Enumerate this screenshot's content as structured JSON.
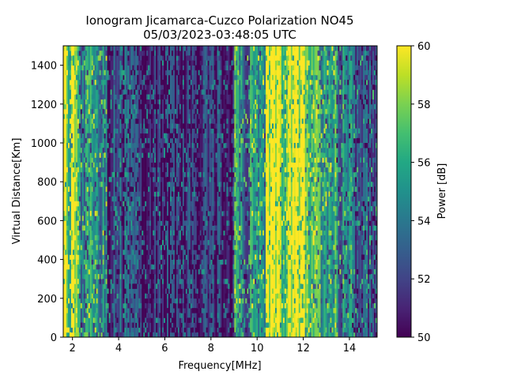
{
  "chart_data": {
    "type": "heatmap",
    "title": "Ionogram Jicamarca-Cuzco Polarization NO45",
    "subtitle": "05/03/2023-03:48:05 UTC",
    "xlabel": "Frequency[MHz]",
    "ylabel": "Virtual Distance[Km]",
    "xlim": [
      1.6,
      15.2
    ],
    "ylim": [
      0,
      1500
    ],
    "xticks": [
      2,
      4,
      6,
      8,
      10,
      12,
      14
    ],
    "yticks": [
      0,
      200,
      400,
      600,
      800,
      1000,
      1200,
      1400
    ],
    "colorbar": {
      "label": "Power [dB]",
      "range": [
        50,
        60
      ],
      "ticks": [
        50,
        52,
        54,
        56,
        58,
        60
      ],
      "colormap": "viridis"
    },
    "frequency_power_profile": [
      {
        "from": 1.6,
        "to": 1.8,
        "level": 0.95
      },
      {
        "from": 1.8,
        "to": 2.0,
        "level": 0.8
      },
      {
        "from": 2.0,
        "to": 2.3,
        "level": 0.88
      },
      {
        "from": 2.3,
        "to": 2.6,
        "level": 0.45
      },
      {
        "from": 2.6,
        "to": 3.0,
        "level": 0.55
      },
      {
        "from": 3.0,
        "to": 3.5,
        "level": 0.5
      },
      {
        "from": 3.5,
        "to": 4.5,
        "level": 0.22
      },
      {
        "from": 4.5,
        "to": 6.0,
        "level": 0.15
      },
      {
        "from": 6.0,
        "to": 7.5,
        "level": 0.1
      },
      {
        "from": 7.5,
        "to": 9.0,
        "level": 0.12
      },
      {
        "from": 9.0,
        "to": 9.3,
        "level": 0.6
      },
      {
        "from": 9.3,
        "to": 9.7,
        "level": 0.4
      },
      {
        "from": 9.7,
        "to": 10.4,
        "level": 0.55
      },
      {
        "from": 10.4,
        "to": 11.0,
        "level": 0.97
      },
      {
        "from": 11.0,
        "to": 11.4,
        "level": 0.82
      },
      {
        "from": 11.4,
        "to": 12.1,
        "level": 0.95
      },
      {
        "from": 12.1,
        "to": 12.6,
        "level": 0.7
      },
      {
        "from": 12.6,
        "to": 13.4,
        "level": 0.55
      },
      {
        "from": 13.4,
        "to": 14.2,
        "level": 0.42
      },
      {
        "from": 14.2,
        "to": 15.2,
        "level": 0.3
      }
    ]
  }
}
